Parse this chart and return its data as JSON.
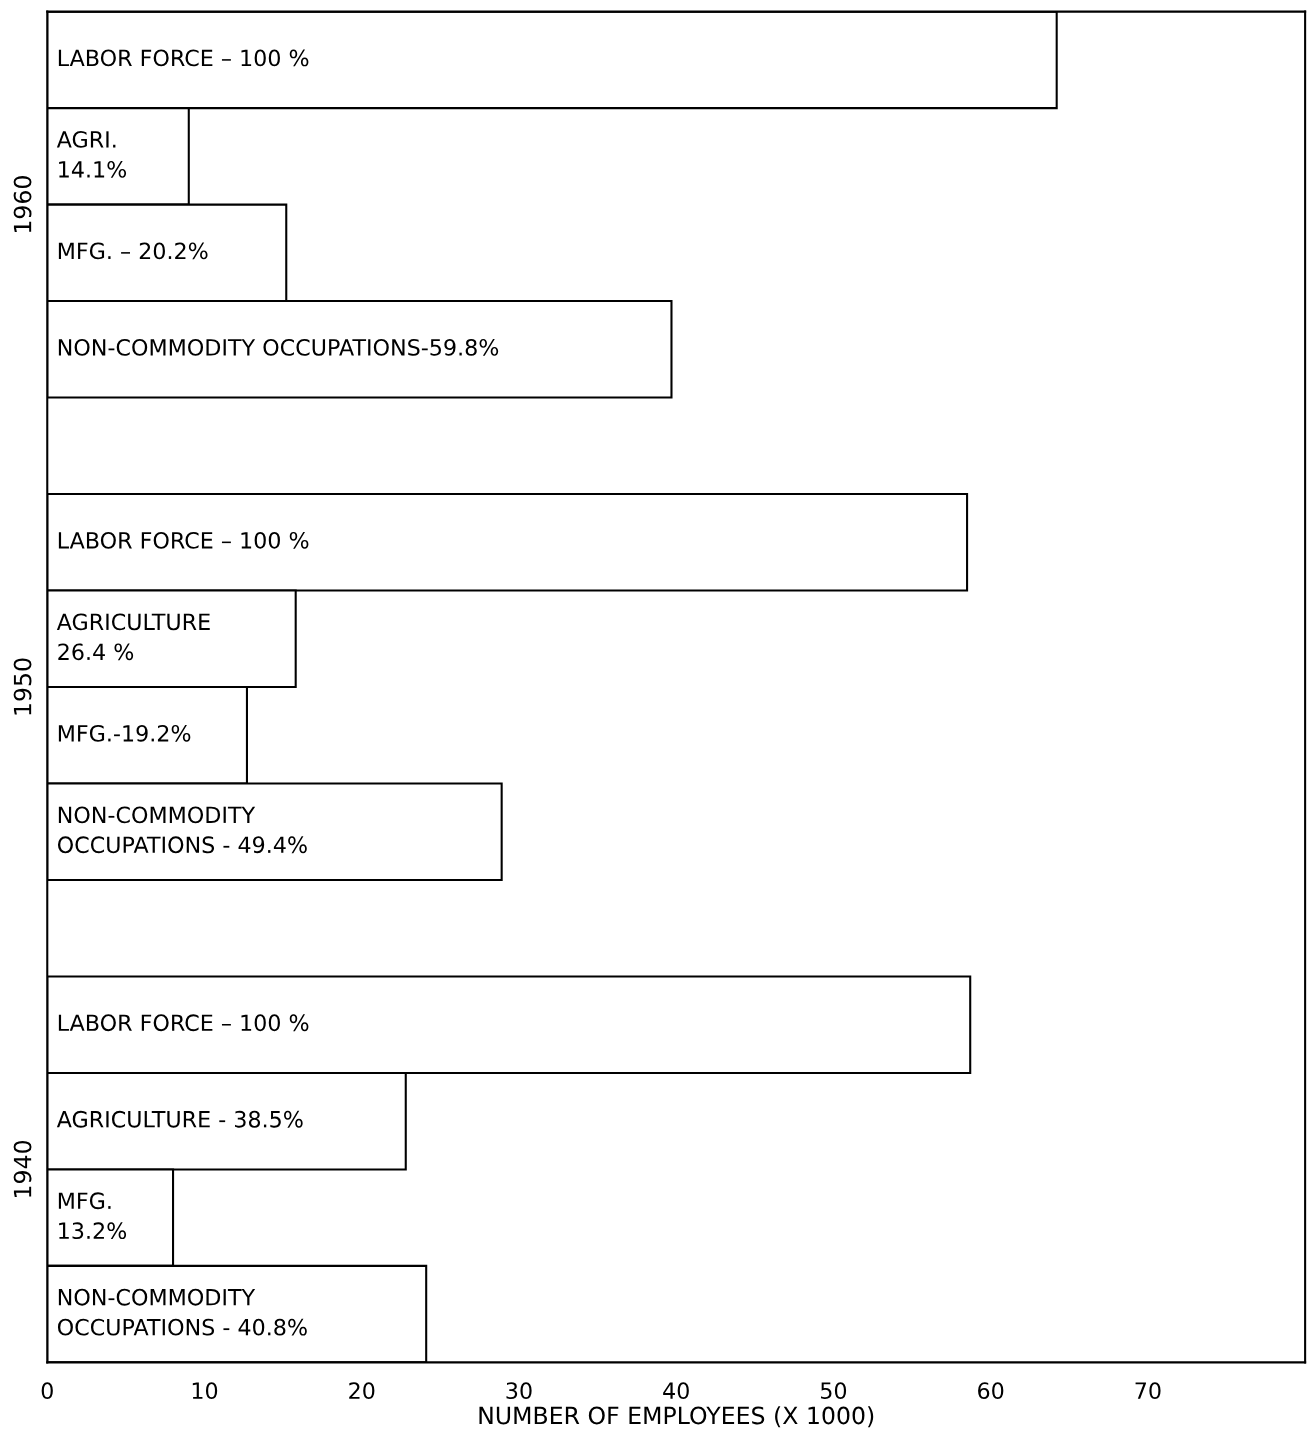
{
  "chart_data": {
    "type": "bar",
    "orientation": "horizontal",
    "xlabel": "NUMBER OF EMPLOYEES (X 1000)",
    "categories": [
      "LABOR FORCE – 100 %",
      "AGRI.\n14.1%",
      "MFG. – 20.2%",
      "NON-COMMODITY OCCUPATIONS-59.8%",
      null,
      "LABOR FORCE – 100 %",
      "AGRICULTURE\n26.4 %",
      "MFG.-19.2%",
      "NON-COMMODITY\nOCCUPATIONS - 49.4%",
      null,
      "LABOR FORCE – 100 %",
      "AGRICULTURE - 38.5%",
      "MFG.\n13.2%",
      "NON-COMMODITY\nOCCUPATIONS - 40.8%"
    ],
    "values": [
      64.2,
      9.0,
      15.2,
      39.7,
      null,
      58.5,
      15.8,
      12.7,
      28.9,
      null,
      58.7,
      22.8,
      8.0,
      24.1
    ],
    "color": "#ffffff",
    "annotations": [
      "1960",
      "1950",
      "1940"
    ],
    "xlim": [
      0,
      80
    ],
    "xticks": [
      0,
      10,
      20,
      30,
      40,
      50,
      60,
      70
    ],
    "grid": false,
    "legend": false
  }
}
